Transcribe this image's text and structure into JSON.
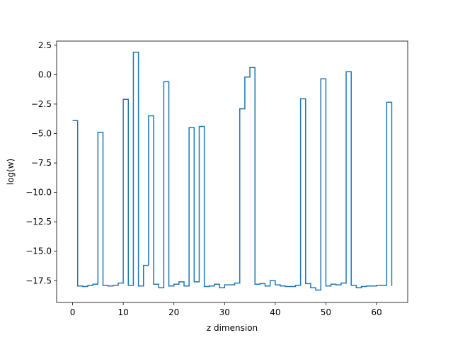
{
  "chart_data": {
    "type": "line",
    "drawstyle": "steps-post",
    "title": "",
    "xlabel": "z dimension",
    "ylabel": "log(w)",
    "xlim": [
      -3.15,
      66.15
    ],
    "ylim": [
      -19.35,
      2.85
    ],
    "xticks": [
      0,
      10,
      20,
      30,
      40,
      50,
      60
    ],
    "xtick_labels": [
      "0",
      "10",
      "20",
      "30",
      "40",
      "50",
      "60"
    ],
    "yticks": [
      2.5,
      0.0,
      -2.5,
      -5.0,
      -7.5,
      -10.0,
      -12.5,
      -15.0,
      -17.5
    ],
    "ytick_labels": [
      "2.5",
      "0.0",
      "−2.5",
      "−5.0",
      "−7.5",
      "−10.0",
      "−12.5",
      "−15.0",
      "−17.5"
    ],
    "grid": false,
    "legend": "none",
    "series": [
      {
        "color": "#1f77b4",
        "x": [
          0,
          1,
          2,
          3,
          4,
          5,
          6,
          7,
          8,
          9,
          10,
          11,
          12,
          13,
          14,
          15,
          16,
          17,
          18,
          19,
          20,
          21,
          22,
          23,
          24,
          25,
          26,
          27,
          28,
          29,
          30,
          31,
          32,
          33,
          34,
          35,
          36,
          37,
          38,
          39,
          40,
          41,
          42,
          43,
          44,
          45,
          46,
          47,
          48,
          49,
          50,
          51,
          52,
          53,
          54,
          55,
          56,
          57,
          58,
          59,
          60,
          61,
          62,
          63
        ],
        "y": [
          -3.9,
          -17.95,
          -18.0,
          -17.9,
          -17.8,
          -4.9,
          -17.9,
          -17.95,
          -17.9,
          -17.7,
          -2.1,
          -17.9,
          1.9,
          -17.95,
          -16.2,
          -3.5,
          -17.8,
          -18.1,
          -0.6,
          -17.95,
          -17.8,
          -17.6,
          -17.95,
          -4.5,
          -17.6,
          -4.4,
          -18.0,
          -17.95,
          -17.8,
          -18.1,
          -17.85,
          -17.85,
          -17.7,
          -2.9,
          -0.2,
          0.6,
          -17.8,
          -17.75,
          -17.95,
          -17.5,
          -17.85,
          -17.95,
          -18.0,
          -18.0,
          -17.9,
          -2.05,
          -17.75,
          -18.1,
          -18.3,
          -0.35,
          -17.95,
          -17.8,
          -17.85,
          -17.7,
          0.25,
          -17.9,
          -18.1,
          -18.0,
          -17.95,
          -17.95,
          -17.9,
          -17.9,
          -2.35,
          -17.95
        ]
      }
    ]
  }
}
